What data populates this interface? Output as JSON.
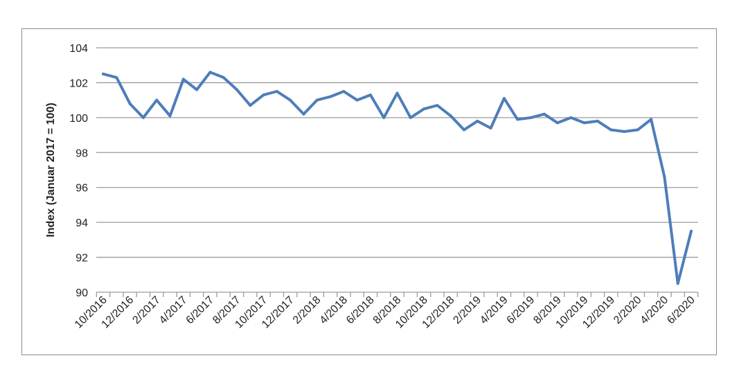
{
  "chart_data": {
    "type": "line",
    "title": "",
    "xlabel": "",
    "ylabel": "Index (Januar 2017 = 100)",
    "ylim": [
      90,
      104
    ],
    "yticks": [
      90,
      92,
      94,
      96,
      98,
      100,
      102,
      104
    ],
    "grid": true,
    "legend": "none",
    "line_color": "#4f7dba",
    "x": [
      "10/2016",
      "11/2016",
      "12/2016",
      "1/2017",
      "2/2017",
      "3/2017",
      "4/2017",
      "5/2017",
      "6/2017",
      "7/2017",
      "8/2017",
      "9/2017",
      "10/2017",
      "11/2017",
      "12/2017",
      "1/2018",
      "2/2018",
      "3/2018",
      "4/2018",
      "5/2018",
      "6/2018",
      "7/2018",
      "8/2018",
      "9/2018",
      "10/2018",
      "11/2018",
      "12/2018",
      "1/2019",
      "2/2019",
      "3/2019",
      "4/2019",
      "5/2019",
      "6/2019",
      "7/2019",
      "8/2019",
      "9/2019",
      "10/2019",
      "11/2019",
      "12/2019",
      "1/2020",
      "2/2020",
      "3/2020",
      "4/2020",
      "5/2020",
      "6/2020"
    ],
    "xtick_labels": [
      "10/2016",
      "12/2016",
      "2/2017",
      "4/2017",
      "6/2017",
      "8/2017",
      "10/2017",
      "12/2017",
      "2/2018",
      "4/2018",
      "6/2018",
      "8/2018",
      "10/2018",
      "12/2018",
      "2/2019",
      "4/2019",
      "6/2019",
      "8/2019",
      "10/2019",
      "12/2019",
      "2/2020",
      "4/2020",
      "6/2020"
    ],
    "series": [
      {
        "values": [
          102.5,
          102.3,
          100.8,
          100.0,
          101.0,
          100.1,
          102.2,
          101.6,
          102.6,
          102.3,
          101.6,
          100.7,
          101.3,
          101.5,
          101.0,
          100.2,
          101.0,
          101.2,
          101.5,
          101.0,
          101.3,
          100.0,
          101.4,
          100.0,
          100.5,
          100.7,
          100.1,
          99.3,
          99.8,
          99.4,
          101.1,
          99.9,
          100.0,
          100.2,
          99.7,
          100.0,
          99.7,
          99.8,
          99.3,
          99.2,
          99.3,
          99.9,
          96.6,
          90.5,
          93.5
        ]
      }
    ]
  }
}
